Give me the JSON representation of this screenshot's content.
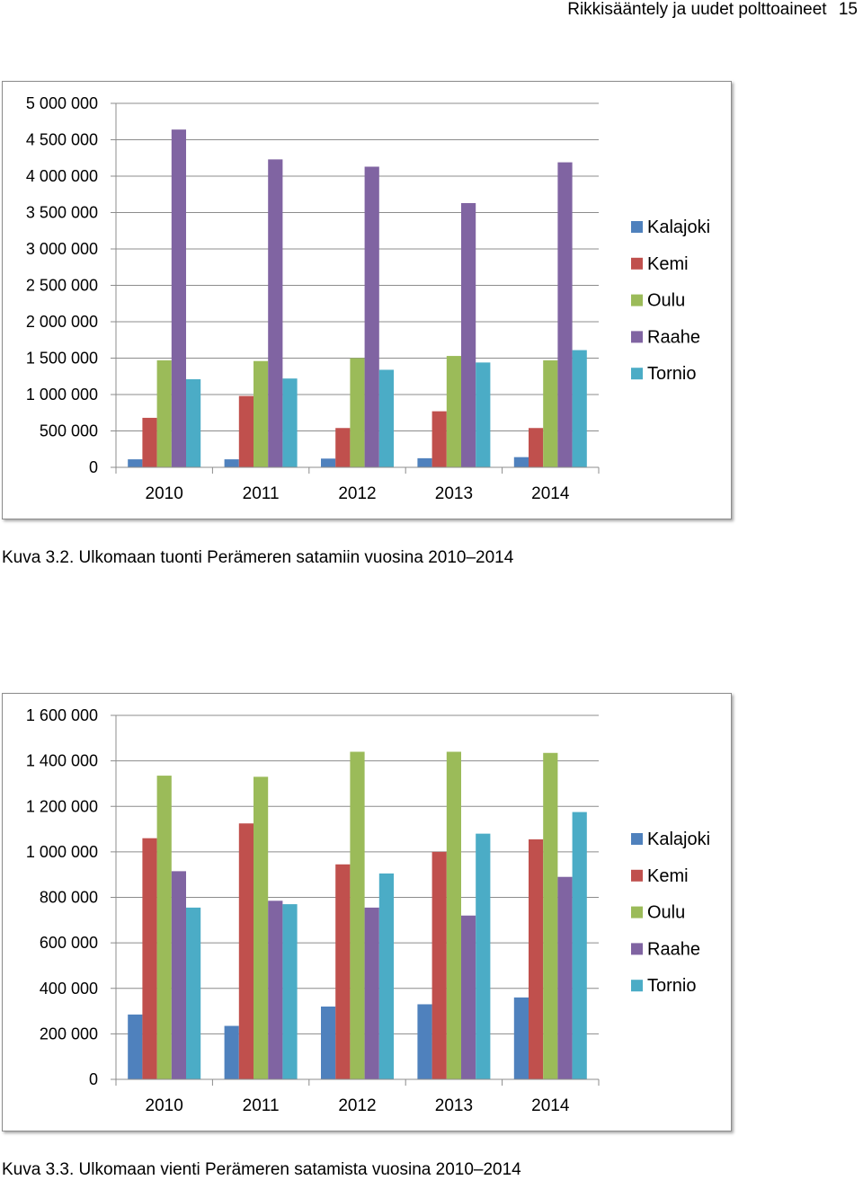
{
  "header": {
    "title": "Rikkisääntely ja uudet polttoaineet",
    "page_number": "15"
  },
  "chart_data": [
    {
      "type": "bar",
      "categories": [
        "2010",
        "2011",
        "2012",
        "2013",
        "2014"
      ],
      "series": [
        {
          "name": "Kalajoki",
          "color": "#4F81BD",
          "values": [
            110000,
            110000,
            120000,
            125000,
            140000
          ]
        },
        {
          "name": "Kemi",
          "color": "#C0504D",
          "values": [
            680000,
            980000,
            540000,
            770000,
            540000
          ]
        },
        {
          "name": "Oulu",
          "color": "#9BBB59",
          "values": [
            1470000,
            1460000,
            1500000,
            1530000,
            1470000
          ]
        },
        {
          "name": "Raahe",
          "color": "#8064A2",
          "values": [
            4640000,
            4230000,
            4130000,
            3630000,
            4190000
          ]
        },
        {
          "name": "Tornio",
          "color": "#4BACC6",
          "values": [
            1210000,
            1220000,
            1340000,
            1440000,
            1610000
          ]
        }
      ],
      "ylim": [
        0,
        5000000
      ],
      "yticks": [
        "0",
        "500 000",
        "1 000 000",
        "1 500 000",
        "2 000 000",
        "2 500 000",
        "3 000 000",
        "3 500 000",
        "4 000 000",
        "4 500 000",
        "5 000 000"
      ],
      "grid": true,
      "legend": "right",
      "caption": "Kuva 3.2. Ulkomaan tuonti Perämeren satamiin vuosina 2010–2014"
    },
    {
      "type": "bar",
      "categories": [
        "2010",
        "2011",
        "2012",
        "2013",
        "2014"
      ],
      "series": [
        {
          "name": "Kalajoki",
          "color": "#4F81BD",
          "values": [
            285000,
            235000,
            320000,
            330000,
            360000
          ]
        },
        {
          "name": "Kemi",
          "color": "#C0504D",
          "values": [
            1060000,
            1125000,
            945000,
            1000000,
            1055000
          ]
        },
        {
          "name": "Oulu",
          "color": "#9BBB59",
          "values": [
            1335000,
            1330000,
            1440000,
            1440000,
            1435000
          ]
        },
        {
          "name": "Raahe",
          "color": "#8064A2",
          "values": [
            915000,
            785000,
            755000,
            720000,
            890000
          ]
        },
        {
          "name": "Tornio",
          "color": "#4BACC6",
          "values": [
            755000,
            770000,
            905000,
            1080000,
            1175000
          ]
        }
      ],
      "ylim": [
        0,
        1600000
      ],
      "yticks": [
        "0",
        "200 000",
        "400 000",
        "600 000",
        "800 000",
        "1 000 000",
        "1 200 000",
        "1 400 000",
        "1 600 000"
      ],
      "grid": true,
      "legend": "right",
      "caption": "Kuva 3.3. Ulkomaan vienti Perämeren satamista vuosina 2010–2014"
    }
  ]
}
